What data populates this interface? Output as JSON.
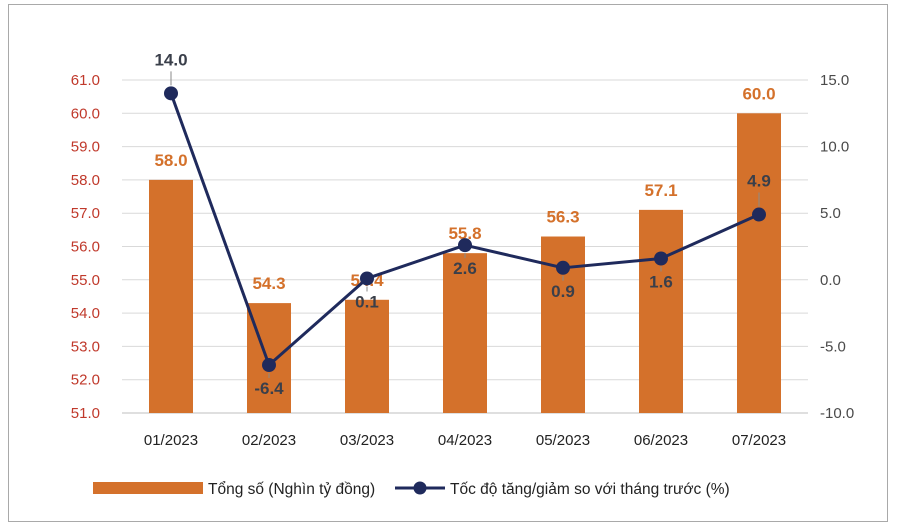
{
  "chart_data": {
    "type": "bar",
    "categories": [
      "01/2023",
      "02/2023",
      "03/2023",
      "04/2023",
      "05/2023",
      "06/2023",
      "07/2023"
    ],
    "series": [
      {
        "name": "Tổng số (Nghìn tỷ đồng)",
        "type": "bar",
        "axis": "left",
        "color": "#d4712b",
        "values": [
          58.0,
          54.3,
          54.4,
          55.8,
          56.3,
          57.1,
          60.0
        ],
        "labels": [
          "58.0",
          "54.3",
          "54.4",
          "55.8",
          "56.3",
          "57.1",
          "60.0"
        ]
      },
      {
        "name": "Tốc độ tăng/giảm so với tháng trước (%)",
        "type": "line",
        "axis": "right",
        "color": "#1f2a5c",
        "values": [
          14.0,
          -6.4,
          0.1,
          2.6,
          0.9,
          1.6,
          4.9
        ],
        "labels": [
          "14.0",
          "-6.4",
          "0.1",
          "2.6",
          "0.9",
          "1.6",
          "4.9"
        ]
      }
    ],
    "y_left": {
      "ylim": [
        51.0,
        61.0
      ],
      "ticks": [
        "51.0",
        "52.0",
        "53.0",
        "54.0",
        "55.0",
        "56.0",
        "57.0",
        "58.0",
        "59.0",
        "60.0",
        "61.0"
      ]
    },
    "y_right": {
      "ylim": [
        -10.0,
        15.0
      ],
      "ticks": [
        "-10.0",
        "-5.0",
        "0.0",
        "5.0",
        "10.0",
        "15.0"
      ]
    },
    "grid": true,
    "legend": "bottom"
  }
}
